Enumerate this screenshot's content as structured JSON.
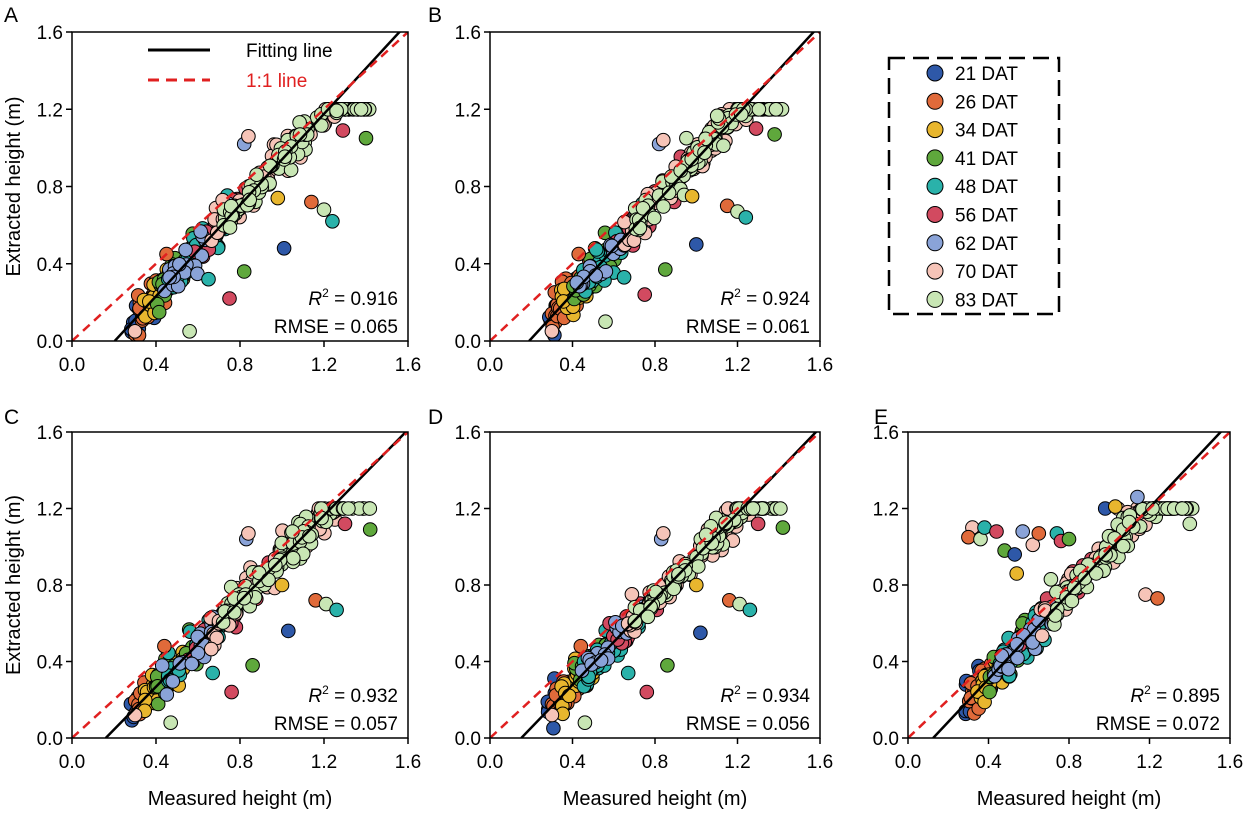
{
  "chart_data": [
    {
      "type": "scatter",
      "panel": "A",
      "xlabel": "",
      "ylabel": "Extracted height (m)",
      "xlim": [
        0.0,
        1.6
      ],
      "ylim": [
        0.0,
        1.6
      ],
      "xticks": [
        "0.0",
        "0.4",
        "0.8",
        "1.2",
        "1.6"
      ],
      "yticks": [
        "0.0",
        "0.4",
        "0.8",
        "1.2",
        "1.6"
      ],
      "r2_label": "R",
      "r2_sup": "2",
      "r2_value": " = 0.916",
      "rmse": "RMSE = 0.065",
      "fit_line": {
        "slope": 1.18,
        "intercept": -0.24
      },
      "line_legend": [
        {
          "label": "Fitting line",
          "color": "#000000",
          "dash": "solid"
        },
        {
          "label": "1:1 line",
          "color": "#e02020",
          "dash": "dashed"
        }
      ],
      "outliers": [
        [
          0.3,
          0.05
        ],
        [
          0.45,
          0.45
        ],
        [
          0.56,
          0.05
        ],
        [
          0.65,
          0.32
        ],
        [
          0.75,
          0.22
        ],
        [
          0.82,
          0.36
        ],
        [
          1.01,
          0.48
        ],
        [
          0.98,
          0.74
        ],
        [
          0.82,
          1.02
        ],
        [
          0.84,
          1.06
        ],
        [
          1.14,
          0.72
        ],
        [
          1.2,
          0.68
        ],
        [
          1.24,
          0.62
        ],
        [
          1.29,
          1.09
        ],
        [
          1.4,
          1.05
        ]
      ]
    },
    {
      "type": "scatter",
      "panel": "B",
      "xlabel": "",
      "ylabel": "",
      "xlim": [
        0.0,
        1.6
      ],
      "ylim": [
        0.0,
        1.6
      ],
      "xticks": [
        "0.0",
        "0.4",
        "0.8",
        "1.2",
        "1.6"
      ],
      "yticks": [
        "0.0",
        "0.4",
        "0.8",
        "1.2",
        "1.6"
      ],
      "r2_label": "R",
      "r2_sup": "2",
      "r2_value": " = 0.924",
      "rmse": "RMSE = 0.061",
      "fit_line": {
        "slope": 1.16,
        "intercept": -0.22
      },
      "outliers": [
        [
          0.3,
          0.05
        ],
        [
          0.43,
          0.45
        ],
        [
          0.56,
          0.1
        ],
        [
          0.65,
          0.33
        ],
        [
          0.75,
          0.24
        ],
        [
          0.85,
          0.37
        ],
        [
          1.0,
          0.5
        ],
        [
          0.98,
          0.75
        ],
        [
          0.82,
          1.02
        ],
        [
          0.84,
          1.04
        ],
        [
          1.15,
          0.7
        ],
        [
          1.2,
          0.67
        ],
        [
          1.24,
          0.64
        ],
        [
          1.29,
          1.1
        ],
        [
          1.38,
          1.07
        ]
      ]
    },
    {
      "type": "scatter",
      "panel": "C",
      "xlabel": "Measured height (m)",
      "ylabel": "Extracted height (m)",
      "xlim": [
        0.0,
        1.6
      ],
      "ylim": [
        0.0,
        1.6
      ],
      "xticks": [
        "0.0",
        "0.4",
        "0.8",
        "1.2",
        "1.6"
      ],
      "yticks": [
        "0.0",
        "0.4",
        "0.8",
        "1.2",
        "1.6"
      ],
      "r2_label": "R",
      "r2_sup": "2",
      "r2_value": " = 0.932",
      "rmse": "RMSE = 0.057",
      "fit_line": {
        "slope": 1.12,
        "intercept": -0.18
      },
      "outliers": [
        [
          0.3,
          0.12
        ],
        [
          0.44,
          0.48
        ],
        [
          0.47,
          0.08
        ],
        [
          0.67,
          0.34
        ],
        [
          0.76,
          0.24
        ],
        [
          0.86,
          0.38
        ],
        [
          1.03,
          0.56
        ],
        [
          1.0,
          0.8
        ],
        [
          0.83,
          1.04
        ],
        [
          0.84,
          1.07
        ],
        [
          1.16,
          0.72
        ],
        [
          1.21,
          0.7
        ],
        [
          1.26,
          0.67
        ],
        [
          1.3,
          1.12
        ],
        [
          1.42,
          1.09
        ]
      ]
    },
    {
      "type": "scatter",
      "panel": "D",
      "xlabel": "Measured height (m)",
      "ylabel": "",
      "xlim": [
        0.0,
        1.6
      ],
      "ylim": [
        0.0,
        1.6
      ],
      "xticks": [
        "0.0",
        "0.4",
        "0.8",
        "1.2",
        "1.6"
      ],
      "yticks": [
        "0.0",
        "0.4",
        "0.8",
        "1.2",
        "1.6"
      ],
      "r2_label": "R",
      "r2_sup": "2",
      "r2_value": " = 0.934",
      "rmse": "RMSE = 0.056",
      "fit_line": {
        "slope": 1.12,
        "intercept": -0.17
      },
      "outliers": [
        [
          0.3,
          0.12
        ],
        [
          0.44,
          0.48
        ],
        [
          0.46,
          0.08
        ],
        [
          0.67,
          0.34
        ],
        [
          0.76,
          0.24
        ],
        [
          0.86,
          0.38
        ],
        [
          1.02,
          0.55
        ],
        [
          1.0,
          0.8
        ],
        [
          0.83,
          1.04
        ],
        [
          0.84,
          1.07
        ],
        [
          1.16,
          0.72
        ],
        [
          1.21,
          0.7
        ],
        [
          1.26,
          0.67
        ],
        [
          1.3,
          1.12
        ],
        [
          1.42,
          1.1
        ]
      ]
    },
    {
      "type": "scatter",
      "panel": "E",
      "xlabel": "Measured height (m)",
      "ylabel": "",
      "xlim": [
        0.0,
        1.6
      ],
      "ylim": [
        0.0,
        1.6
      ],
      "xticks": [
        "0.0",
        "0.4",
        "0.8",
        "1.2",
        "1.6"
      ],
      "yticks": [
        "0.0",
        "0.4",
        "0.8",
        "1.2",
        "1.6"
      ],
      "r2_label": "R",
      "r2_sup": "2",
      "r2_value": " = 0.895",
      "rmse": "RMSE = 0.072",
      "fit_line": {
        "slope": 1.12,
        "intercept": -0.14
      },
      "outliers": [
        [
          0.32,
          1.1
        ],
        [
          0.3,
          1.05
        ],
        [
          0.36,
          1.04
        ],
        [
          0.38,
          1.1
        ],
        [
          0.44,
          1.08
        ],
        [
          0.48,
          0.98
        ],
        [
          0.53,
          0.96
        ],
        [
          0.54,
          0.86
        ],
        [
          0.57,
          1.08
        ],
        [
          0.62,
          1.01
        ],
        [
          0.65,
          1.07
        ],
        [
          0.71,
          0.83
        ],
        [
          0.74,
          1.07
        ],
        [
          0.76,
          1.03
        ],
        [
          0.8,
          1.04
        ],
        [
          0.98,
          1.2
        ],
        [
          1.03,
          1.21
        ],
        [
          1.14,
          1.26
        ],
        [
          1.18,
          0.75
        ],
        [
          1.24,
          0.73
        ],
        [
          1.4,
          1.12
        ]
      ]
    }
  ],
  "legend": {
    "items": [
      {
        "label": "21 DAT",
        "color": "#2e58a8"
      },
      {
        "label": "26 DAT",
        "color": "#e06a3a"
      },
      {
        "label": "34 DAT",
        "color": "#e8b62e"
      },
      {
        "label": "41 DAT",
        "color": "#5fa83c"
      },
      {
        "label": "48 DAT",
        "color": "#2ab2aa"
      },
      {
        "label": "56 DAT",
        "color": "#d24a60"
      },
      {
        "label": "62 DAT",
        "color": "#8aa3d8"
      },
      {
        "label": "70 DAT",
        "color": "#f6c4b8"
      },
      {
        "label": "83 DAT",
        "color": "#c8e6b4"
      }
    ]
  }
}
